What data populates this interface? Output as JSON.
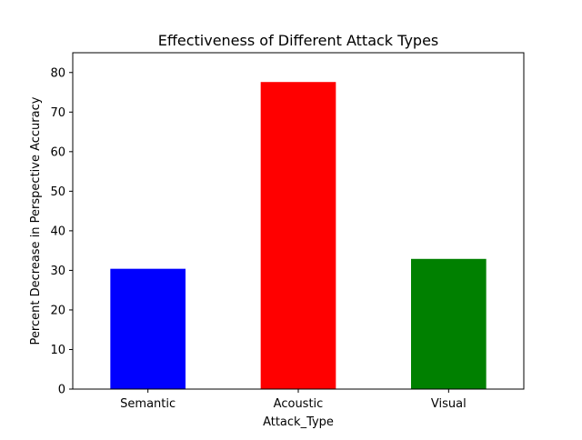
{
  "chart_data": {
    "type": "bar",
    "title": "Effectiveness of Different Attack Types",
    "xlabel": "Attack_Type",
    "ylabel": "Percent Decrease in Perspective Accuracy",
    "categories": [
      "Semantic",
      "Acoustic",
      "Visual"
    ],
    "values": [
      30.4,
      77.6,
      32.9
    ],
    "colors": [
      "#0000ff",
      "#ff0000",
      "#008000"
    ],
    "ylim": [
      0,
      85
    ],
    "yticks": [
      0,
      10,
      20,
      30,
      40,
      50,
      60,
      70,
      80
    ],
    "grid": false,
    "legend": "none"
  }
}
